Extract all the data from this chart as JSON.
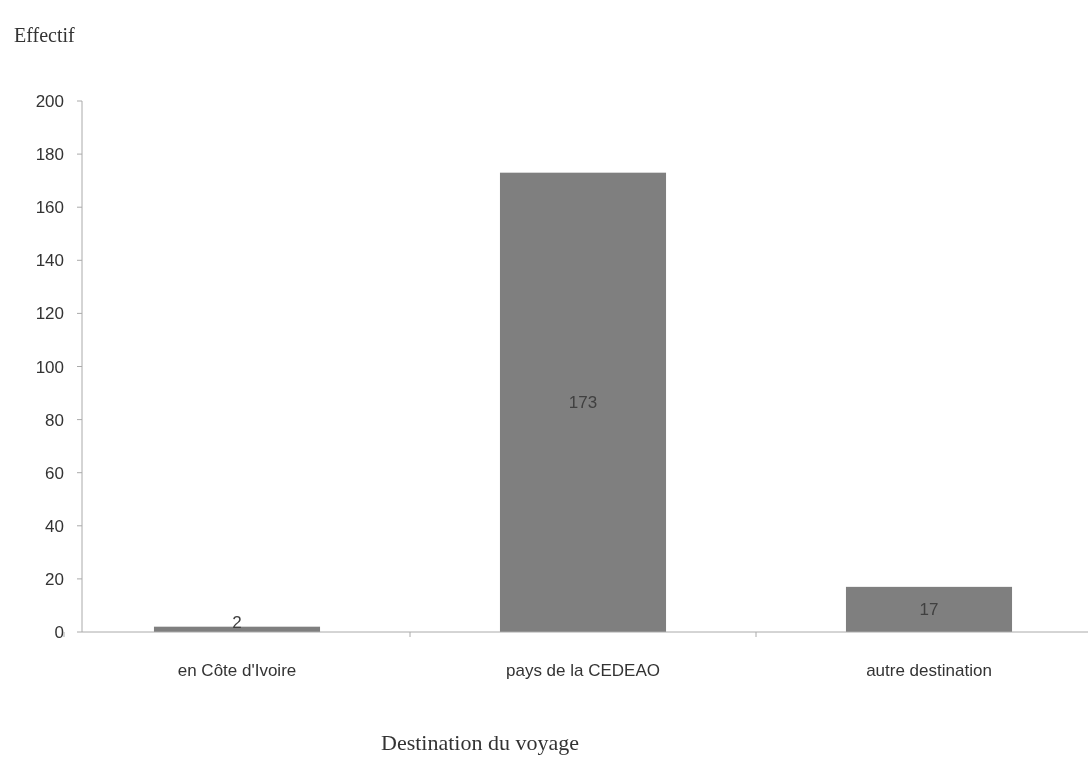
{
  "chart_data": {
    "type": "bar",
    "ylabel": "Effectif",
    "xlabel": "Destination du voyage",
    "categories": [
      "en Côte d'Ivoire",
      "pays de la CEDEAO",
      "autre destination"
    ],
    "values": [
      2,
      173,
      17
    ],
    "color": "#7f7f7f",
    "data_labels": true,
    "ylim": [
      0,
      200
    ],
    "yticks": [
      0,
      20,
      40,
      60,
      80,
      100,
      120,
      140,
      160,
      180,
      200
    ],
    "grid": false
  }
}
